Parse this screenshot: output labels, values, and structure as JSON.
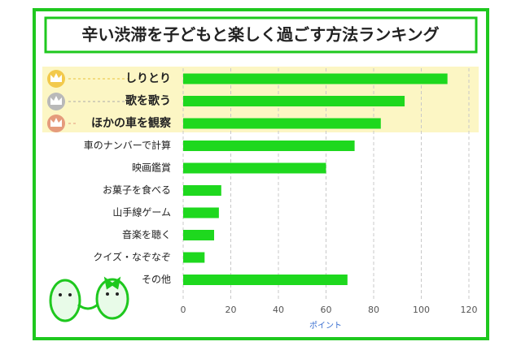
{
  "chart_data": {
    "type": "bar",
    "orientation": "horizontal",
    "title": "辛い渋滞を子どもと楽しく過ごす方法ランキング",
    "x_label": "ポイント",
    "categories": [
      "しりとり",
      "歌を歌う",
      "ほかの車を観察",
      "車のナンバーで計算",
      "映画鑑賞",
      "お菓子を食べる",
      "山手線ゲーム",
      "音楽を聴く",
      "クイズ・なぞなぞ",
      "その他"
    ],
    "values": [
      111,
      93,
      83,
      72,
      60,
      16,
      15,
      13,
      9,
      69
    ],
    "color": "#1ed81e",
    "xlim": [
      0,
      120
    ],
    "xticks": [
      0,
      20,
      40,
      60,
      80,
      100,
      120
    ],
    "grid": true
  }
}
